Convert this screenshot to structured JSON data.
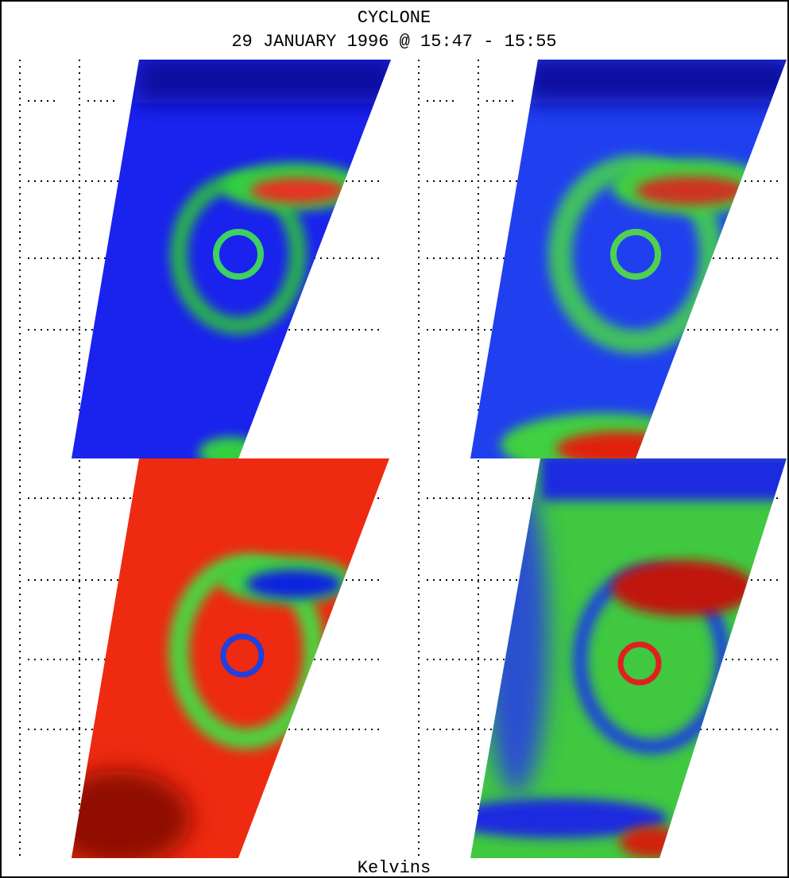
{
  "header": {
    "title": "CYCLONE",
    "subtitle": "29 JANUARY 1996 @ 15:47 - 15:55"
  },
  "footer": {
    "label": "Kelvins"
  }
}
